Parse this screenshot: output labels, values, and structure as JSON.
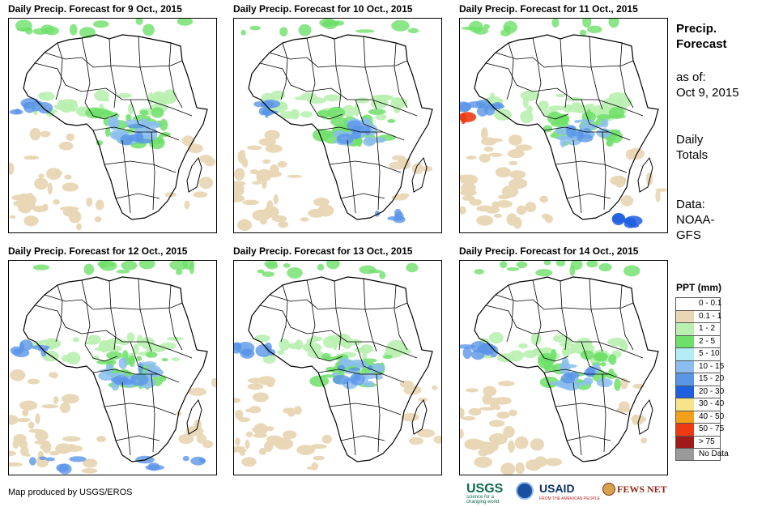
{
  "panels": [
    {
      "title": "Daily Precip. Forecast for 9 Oct., 2015",
      "day": 0
    },
    {
      "title": "Daily Precip. Forecast for 10 Oct., 2015",
      "day": 1
    },
    {
      "title": "Daily Precip. Forecast for 11 Oct., 2015",
      "day": 2
    },
    {
      "title": "Daily Precip. Forecast for 12 Oct., 2015",
      "day": 3
    },
    {
      "title": "Daily Precip. Forecast for 13 Oct., 2015",
      "day": 4
    },
    {
      "title": "Daily Precip. Forecast for 14 Oct., 2015",
      "day": 5
    }
  ],
  "side": {
    "title_line1": "Precip.",
    "title_line2": "Forecast",
    "asof_label": "as of:",
    "asof_date": "Oct 9, 2015",
    "daily_line1": "Daily",
    "daily_line2": "Totals",
    "data_line1": "Data:",
    "data_line2": "NOAA-",
    "data_line3": "GFS"
  },
  "legend": {
    "title": "PPT (mm)",
    "items": [
      {
        "label": "0 - 0.1",
        "color": "#ffffff"
      },
      {
        "label": "0.1 - 1",
        "color": "#e8d6b4"
      },
      {
        "label": "1 - 2",
        "color": "#b9f0b0"
      },
      {
        "label": "2 - 5",
        "color": "#6ee06a"
      },
      {
        "label": "5 - 10",
        "color": "#b2ecf5"
      },
      {
        "label": "10 - 15",
        "color": "#8bbdf0"
      },
      {
        "label": "15 - 20",
        "color": "#5a95e8"
      },
      {
        "label": "20 - 30",
        "color": "#1f5fe0"
      },
      {
        "label": "30 - 40",
        "color": "#f7e38a"
      },
      {
        "label": "40 - 50",
        "color": "#f2a01c"
      },
      {
        "label": "50 - 75",
        "color": "#ee3a12"
      },
      {
        "label": "> 75",
        "color": "#a01a1a"
      },
      {
        "label": "No Data",
        "color": "#9a9a9a"
      }
    ]
  },
  "credit": "Map produced by USGS/EROS",
  "logos": {
    "usgs": "USGS",
    "usgs_tagline": "science for a changing world",
    "usaid": "USAID",
    "usaid_tagline": "FROM THE AMERICAN PEOPLE",
    "fews": "FEWS NET"
  },
  "colors": {
    "outline": "#000000",
    "land": "#ffffff"
  }
}
